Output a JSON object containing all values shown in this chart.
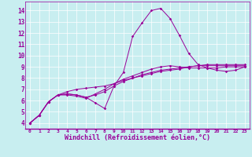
{
  "background_color": "#c8eef0",
  "line_color": "#990099",
  "grid_color": "#ffffff",
  "xlabel": "Windchill (Refroidissement éolien,°C)",
  "xtick_labels": [
    "0",
    "1",
    "2",
    "3",
    "4",
    "5",
    "6",
    "7",
    "8",
    "9",
    "10",
    "11",
    "12",
    "13",
    "14",
    "15",
    "16",
    "17",
    "18",
    "19",
    "20",
    "21",
    "22",
    "23"
  ],
  "xtick_vals": [
    0,
    1,
    2,
    3,
    4,
    5,
    6,
    7,
    8,
    9,
    10,
    11,
    12,
    13,
    14,
    15,
    16,
    17,
    18,
    19,
    20,
    21,
    22,
    23
  ],
  "ytick_vals": [
    4,
    5,
    6,
    7,
    8,
    9,
    10,
    11,
    12,
    13,
    14
  ],
  "ylim": [
    3.5,
    14.8
  ],
  "xlim": [
    -0.5,
    23.5
  ],
  "line1_y": [
    4.0,
    4.7,
    5.9,
    6.5,
    6.6,
    6.5,
    6.3,
    5.8,
    5.3,
    7.3,
    8.5,
    11.7,
    12.9,
    14.0,
    14.2,
    13.3,
    11.8,
    10.2,
    9.2,
    8.9,
    8.7,
    8.6,
    8.7,
    9.0
  ],
  "line2_y": [
    4.0,
    4.7,
    5.9,
    6.5,
    6.6,
    6.5,
    6.3,
    6.5,
    6.8,
    7.3,
    7.7,
    8.0,
    8.2,
    8.4,
    8.6,
    8.7,
    8.8,
    9.0,
    9.1,
    9.1,
    9.1,
    9.1,
    9.1,
    9.1
  ],
  "line3_y": [
    4.0,
    4.7,
    5.9,
    6.5,
    6.8,
    7.0,
    7.1,
    7.2,
    7.3,
    7.5,
    7.8,
    8.0,
    8.3,
    8.5,
    8.7,
    8.8,
    8.9,
    9.0,
    9.1,
    9.2,
    9.2,
    9.2,
    9.2,
    9.2
  ],
  "line4_y": [
    4.0,
    4.7,
    5.9,
    6.5,
    6.5,
    6.4,
    6.2,
    6.6,
    7.0,
    7.5,
    7.9,
    8.2,
    8.5,
    8.8,
    9.0,
    9.1,
    9.0,
    8.9,
    8.9,
    8.9,
    8.9,
    9.0,
    9.0,
    9.0
  ]
}
